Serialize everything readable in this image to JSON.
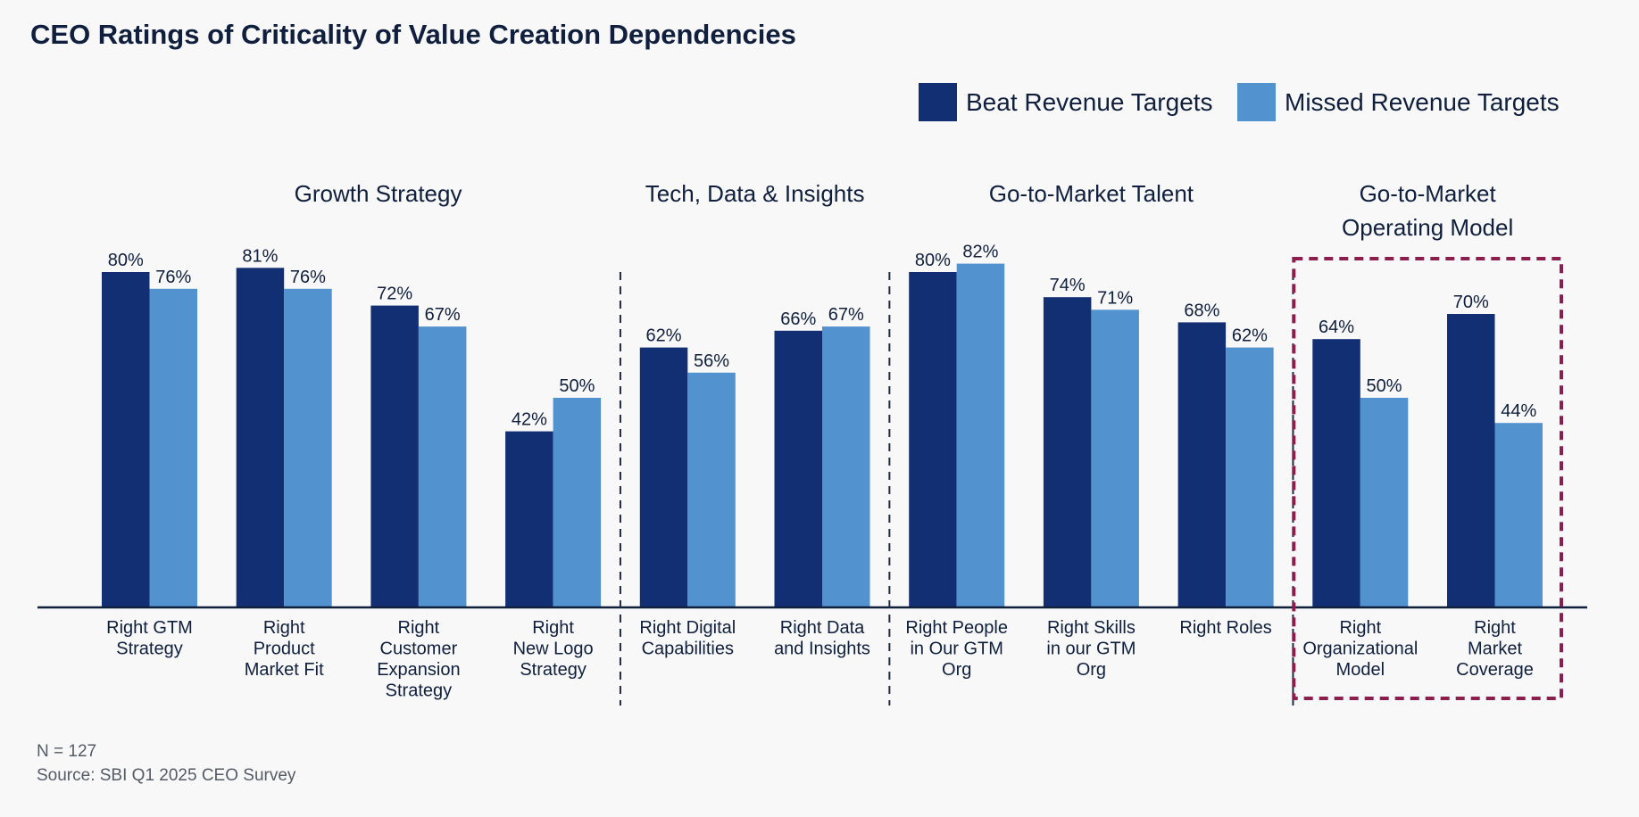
{
  "chart_data": {
    "type": "bar",
    "title": "CEO Ratings of Criticality of Value Creation Dependencies",
    "series": [
      {
        "name": "Beat Revenue Targets",
        "color": "#132f73",
        "values": [
          80,
          81,
          72,
          42,
          62,
          66,
          80,
          74,
          68,
          64,
          70
        ]
      },
      {
        "name": "Missed Revenue Targets",
        "color": "#5192cf",
        "values": [
          76,
          76,
          67,
          50,
          56,
          67,
          82,
          71,
          62,
          50,
          44
        ]
      }
    ],
    "categories": [
      [
        "Right GTM",
        "Strategy"
      ],
      [
        "Right",
        "Product",
        "Market Fit"
      ],
      [
        "Right",
        "Customer",
        "Expansion",
        "Strategy"
      ],
      [
        "Right",
        "New Logo",
        "Strategy"
      ],
      [
        "Right Digital",
        "Capabilities"
      ],
      [
        "Right Data",
        "and Insights"
      ],
      [
        "Right People",
        "in Our GTM",
        "Org"
      ],
      [
        "Right Skills",
        "in our GTM",
        "Org"
      ],
      [
        "Right Roles"
      ],
      [
        "Right",
        "Organizational",
        "Model"
      ],
      [
        "Right",
        "Market",
        "Coverage"
      ]
    ],
    "groups": [
      {
        "name": [
          "Growth Strategy"
        ],
        "start": 0,
        "end": 3
      },
      {
        "name": [
          "Tech, Data & Insights"
        ],
        "start": 4,
        "end": 5
      },
      {
        "name": [
          "Go-to-Market Talent"
        ],
        "start": 6,
        "end": 8
      },
      {
        "name": [
          "Go-to-Market",
          "Operating Model"
        ],
        "start": 9,
        "end": 10,
        "highlight": true
      }
    ],
    "value_suffix": "%",
    "ylim": [
      0,
      100
    ],
    "highlight_color": "#8c1d4f",
    "divider_color": "#1f2a44",
    "axis_color": "#0f1f3d"
  },
  "footnote": {
    "n": "N = 127",
    "source": "Source: SBI Q1 2025 CEO Survey"
  }
}
